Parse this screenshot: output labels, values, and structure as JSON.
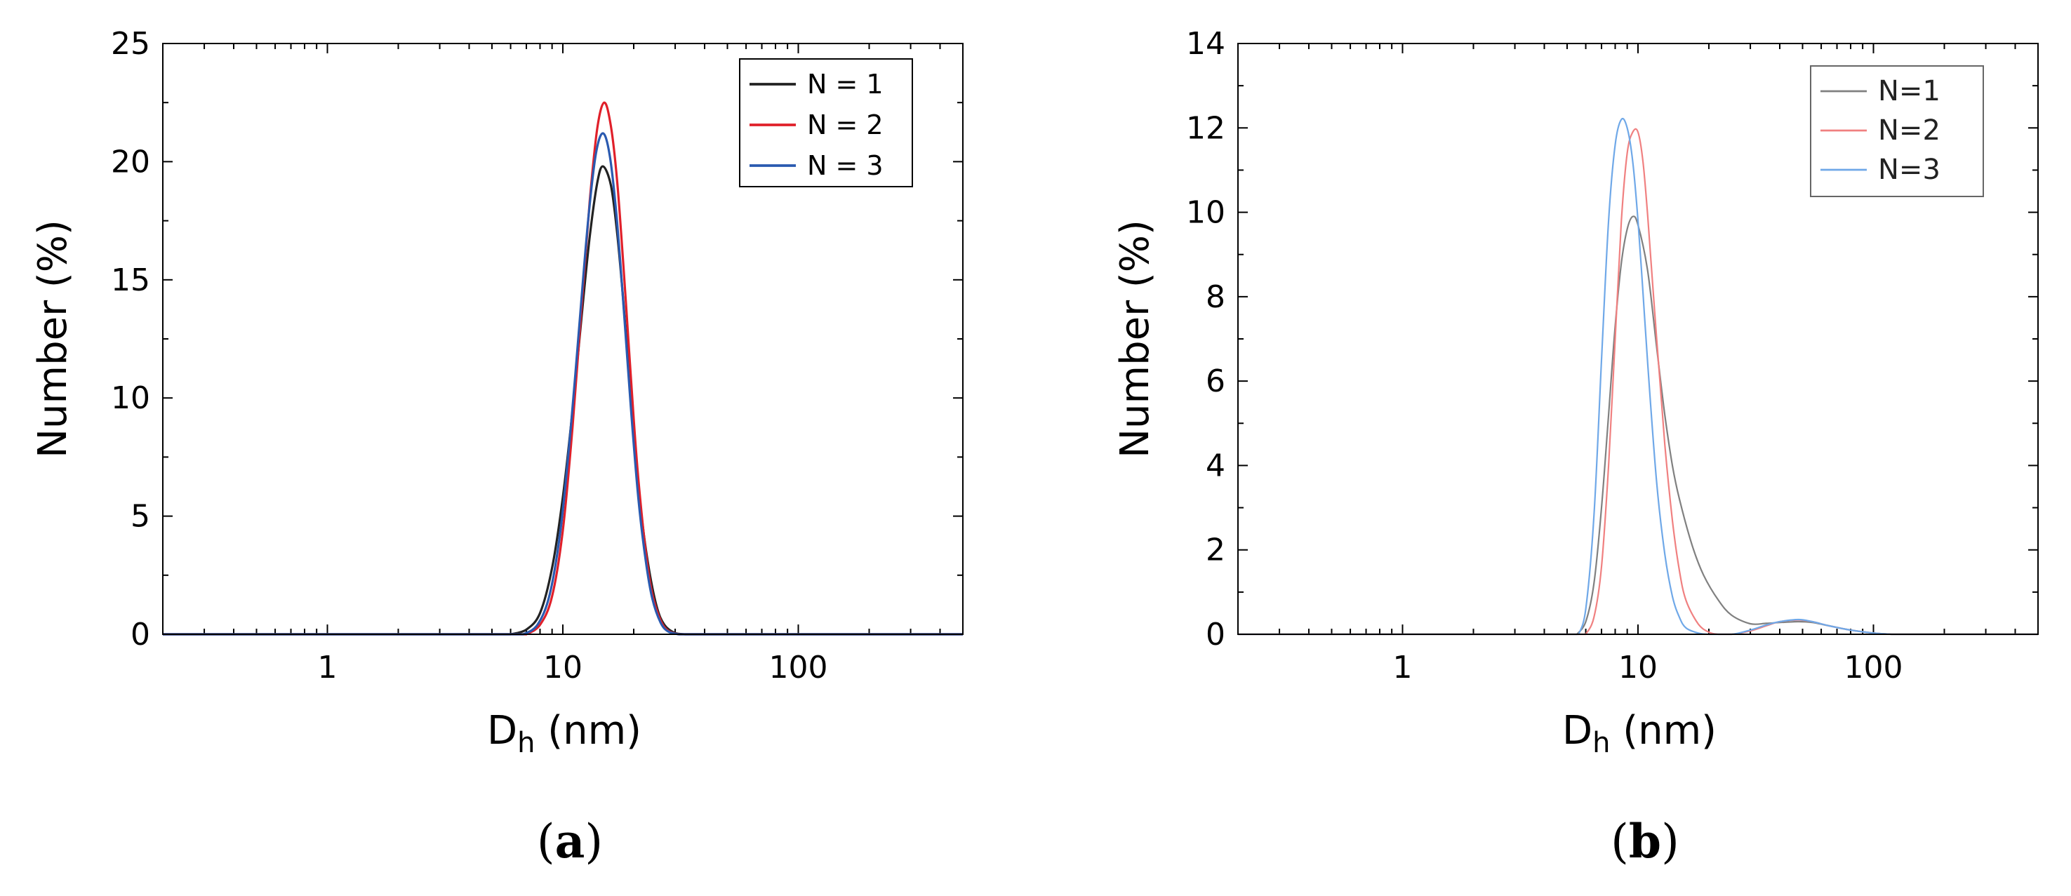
{
  "chart_data": [
    {
      "type": "line",
      "panel_label": "(a)",
      "panel_letter": "a",
      "xscale": "log",
      "xlim": [
        0.2,
        500
      ],
      "ylim": [
        0,
        25
      ],
      "xlabel": "D",
      "xlabel_sub": "h",
      "xlabel_unit": " (nm)",
      "ylabel": "Number (%)",
      "xticks": [
        {
          "value": 1,
          "label": "1"
        },
        {
          "value": 10,
          "label": "10"
        },
        {
          "value": 100,
          "label": "100"
        }
      ],
      "yticks": [
        0,
        5,
        10,
        15,
        20,
        25
      ],
      "legend_position": "top-right",
      "series": [
        {
          "name": "N = 1",
          "color": "#222222",
          "x": [
            6.0,
            7.0,
            8.0,
            9.0,
            10.0,
            11.0,
            12.0,
            13.0,
            14.0,
            14.8,
            16.0,
            17.0,
            18.0,
            19.0,
            20.0,
            21.5,
            23.0,
            25.0,
            27.0,
            30.0,
            33.0
          ],
          "y": [
            0,
            0.2,
            0.9,
            2.8,
            5.8,
            9.5,
            13.4,
            16.8,
            19.1,
            19.8,
            19.0,
            17.0,
            14.3,
            11.3,
            8.5,
            5.2,
            3.0,
            1.2,
            0.4,
            0.05,
            0
          ]
        },
        {
          "name": "N = 2",
          "color": "#e0202a",
          "x": [
            7.0,
            8.0,
            9.0,
            10.0,
            11.0,
            12.0,
            13.0,
            14.0,
            15.0,
            16.0,
            17.0,
            18.0,
            19.0,
            20.0,
            21.0,
            22.5,
            24.0,
            26.0,
            28.0,
            31.0
          ],
          "y": [
            0,
            0.4,
            1.6,
            4.4,
            8.8,
            13.8,
            18.3,
            21.4,
            22.5,
            21.5,
            19.2,
            15.9,
            12.4,
            9.1,
            6.4,
            3.5,
            1.7,
            0.6,
            0.15,
            0
          ]
        },
        {
          "name": "N = 3",
          "color": "#2a5ab0",
          "x": [
            6.8,
            7.8,
            8.8,
            9.8,
            10.8,
            11.8,
            12.8,
            13.8,
            14.8,
            15.8,
            16.8,
            17.8,
            18.8,
            19.8,
            21.0,
            22.5,
            24.0,
            26.0,
            28.0,
            31.0
          ],
          "y": [
            0,
            0.4,
            1.7,
            4.5,
            8.7,
            13.3,
            17.5,
            20.3,
            21.2,
            20.3,
            18.0,
            14.9,
            11.6,
            8.6,
            5.6,
            3.1,
            1.5,
            0.5,
            0.12,
            0
          ]
        }
      ]
    },
    {
      "type": "line",
      "panel_label": "(b)",
      "panel_letter": "b",
      "xscale": "log",
      "xlim": [
        0.2,
        500
      ],
      "ylim": [
        0,
        14
      ],
      "xlabel": "D",
      "xlabel_sub": "h",
      "xlabel_unit": " (nm)",
      "ylabel": "Number (%)",
      "xticks": [
        {
          "value": 1,
          "label": "1"
        },
        {
          "value": 10,
          "label": "10"
        },
        {
          "value": 100,
          "label": "100"
        }
      ],
      "yticks": [
        0,
        2,
        4,
        6,
        8,
        10,
        12,
        14
      ],
      "legend_position": "top-right",
      "series": [
        {
          "name": "N=1",
          "color": "#808080",
          "x": [
            5.5,
            6.0,
            6.5,
            7.0,
            7.5,
            8.0,
            8.5,
            9.0,
            9.5,
            10.0,
            11.0,
            12.0,
            13.0,
            14.0,
            15.0,
            17.0,
            19.0,
            22.0,
            25.0,
            30.0,
            35.0,
            40.0,
            48.0,
            55.0,
            65.0,
            80.0,
            100.0,
            120.0
          ],
          "y": [
            0,
            0.3,
            1.2,
            3.0,
            5.2,
            7.3,
            8.8,
            9.6,
            9.9,
            9.7,
            8.6,
            6.8,
            5.2,
            4.0,
            3.2,
            2.1,
            1.4,
            0.8,
            0.45,
            0.25,
            0.26,
            0.28,
            0.3,
            0.28,
            0.2,
            0.1,
            0.03,
            0
          ]
        },
        {
          "name": "N=2",
          "color": "#f08080",
          "x": [
            6.0,
            6.5,
            7.0,
            7.5,
            8.0,
            8.5,
            9.0,
            9.5,
            10.0,
            10.5,
            11.0,
            12.0,
            13.0,
            14.0,
            15.0,
            16.0,
            18.0,
            20.0,
            22.0,
            25.0,
            30.0,
            35.0,
            40.0,
            48.0,
            55.0,
            65.0,
            80.0,
            100.0,
            120.0
          ],
          "y": [
            0,
            0.4,
            1.6,
            4.0,
            7.0,
            9.8,
            11.4,
            11.9,
            11.9,
            11.2,
            9.9,
            7.0,
            4.5,
            2.7,
            1.5,
            0.8,
            0.25,
            0.05,
            0,
            0,
            0.08,
            0.2,
            0.3,
            0.34,
            0.3,
            0.2,
            0.1,
            0.03,
            0
          ]
        },
        {
          "name": "N=3",
          "color": "#6fa8e8",
          "x": [
            5.6,
            6.0,
            6.5,
            7.0,
            7.5,
            8.0,
            8.5,
            9.0,
            9.5,
            10.0,
            10.5,
            11.0,
            12.0,
            13.0,
            14.0,
            15.0,
            16.0,
            18.0,
            20.0,
            25.0,
            30.0,
            35.0,
            40.0,
            48.0,
            55.0,
            65.0,
            80.0,
            100.0,
            120.0
          ],
          "y": [
            0,
            0.6,
            2.8,
            6.5,
            9.8,
            11.6,
            12.2,
            12.0,
            11.2,
            9.8,
            8.1,
            6.4,
            3.6,
            1.9,
            0.9,
            0.4,
            0.15,
            0.03,
            0,
            0,
            0.1,
            0.22,
            0.3,
            0.35,
            0.3,
            0.2,
            0.1,
            0.03,
            0
          ]
        }
      ]
    }
  ]
}
